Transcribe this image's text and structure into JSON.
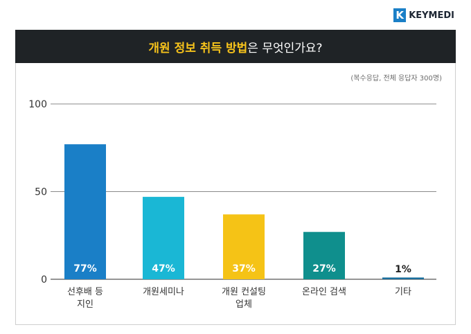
{
  "brand": {
    "mark": "K",
    "name": "KEYMEDI",
    "color": "#1a7fc7"
  },
  "title": {
    "highlight": "개원 정보 취득 방법",
    "rest": "은 무엇인가요?"
  },
  "note": "(복수응답, 전체 응답자 300명)",
  "chart_data": {
    "type": "bar",
    "categories": [
      [
        "선후배 등",
        "지인"
      ],
      [
        "개원세미나"
      ],
      [
        "개원 컨설팅",
        "업체"
      ],
      [
        "온라인 검색"
      ],
      [
        "기타"
      ]
    ],
    "values": [
      77,
      47,
      37,
      27,
      1
    ],
    "data_labels": [
      "77%",
      "47%",
      "37%",
      "27%",
      "1%"
    ],
    "colors": [
      "#1a7fc7",
      "#1ab7d5",
      "#f5c316",
      "#0f8f8d",
      "#1a6e9c"
    ],
    "ylim": [
      0,
      100
    ],
    "yticks": [
      0,
      50,
      100
    ],
    "grid": true
  }
}
